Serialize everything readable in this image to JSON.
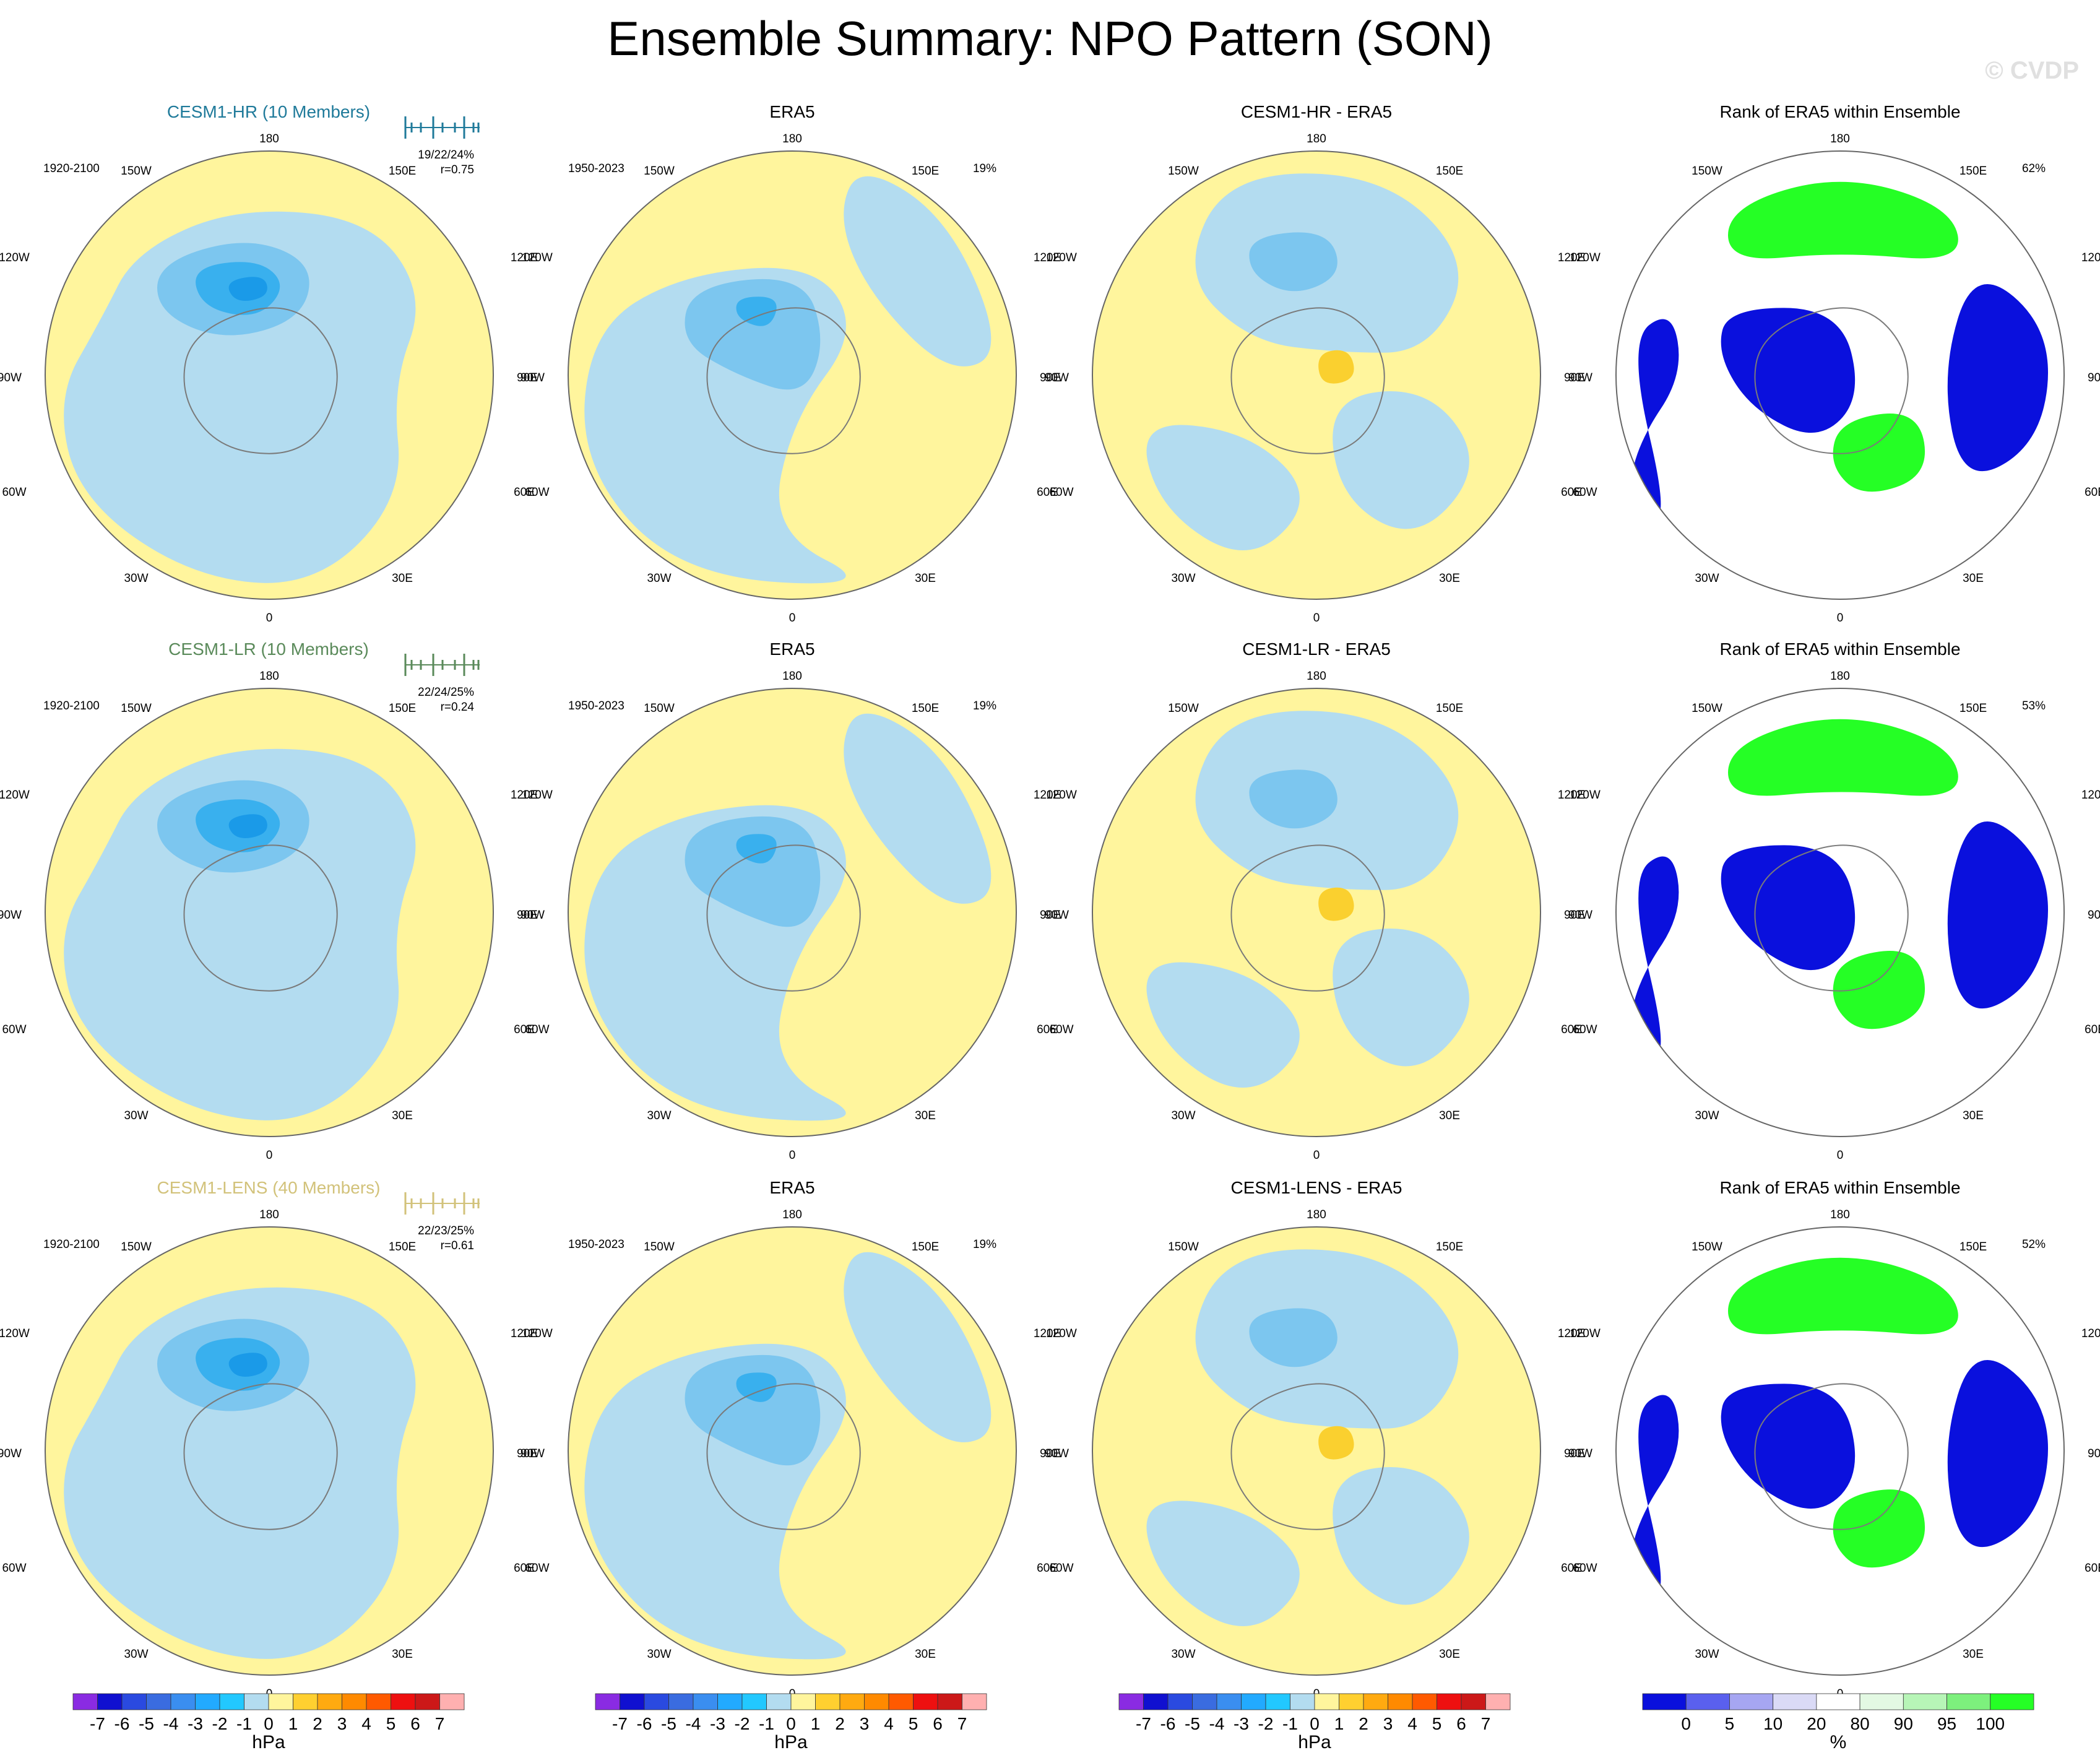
{
  "title": "Ensemble Summary: NPO Pattern (SON)",
  "watermark": "© CVDP",
  "labels": {
    "lon_top": "180",
    "lon_bottom": "0",
    "lon_150w": "150W",
    "lon_150e": "150E",
    "lon_120w": "120W",
    "lon_120e": "120E",
    "lon_90w": "90W",
    "lon_90e": "90E",
    "lon_60w": "60W",
    "lon_60e": "60E",
    "lon_30w": "30W",
    "lon_30e": "30E"
  },
  "rows": [
    {
      "model_title": "CESM1-HR (10 Members)",
      "model_color": "#1f7a9a",
      "model_period": "1920-2100",
      "model_stats": "19/22/24%",
      "model_r": "r=0.75",
      "obs_title": "ERA5",
      "obs_period": "1950-2023",
      "obs_pct": "19%",
      "diff_title": "CESM1-HR - ERA5",
      "rank_title": "Rank of ERA5 within Ensemble",
      "rank_pct": "62%"
    },
    {
      "model_title": "CESM1-LR (10 Members)",
      "model_color": "#5a8a5a",
      "model_period": "1920-2100",
      "model_stats": "22/24/25%",
      "model_r": "r=0.24",
      "obs_title": "ERA5",
      "obs_period": "1950-2023",
      "obs_pct": "19%",
      "diff_title": "CESM1-LR - ERA5",
      "rank_title": "Rank of ERA5 within Ensemble",
      "rank_pct": "53%"
    },
    {
      "model_title": "CESM1-LENS (40 Members)",
      "model_color": "#d2c27a",
      "model_period": "1920-2100",
      "model_stats": "22/23/25%",
      "model_r": "r=0.61",
      "obs_title": "ERA5",
      "obs_period": "1950-2023",
      "obs_pct": "19%",
      "diff_title": "CESM1-LENS - ERA5",
      "rank_title": "Rank of ERA5 within Ensemble",
      "rank_pct": "52%"
    }
  ],
  "colors": {
    "light_blue": "#b3dcf0",
    "light_yellow": "#fff59d",
    "blue2": "#7cc6ef",
    "blue3": "#39b0ee",
    "blue4": "#1a9ae8",
    "orange1": "#fad02f",
    "orange2": "#fba919",
    "rank_blue": "#0a10dd",
    "rank_light_blue": "#dadaf6",
    "rank_light_green": "#e3f9e3",
    "rank_green": "#25ff25"
  },
  "chart_data": {
    "type": "heatmap",
    "pressure_colorbar": {
      "unit": "hPa",
      "tick_labels": [
        "-7",
        "-6",
        "-5",
        "-4",
        "-3",
        "-2",
        "-1",
        "0",
        "1",
        "2",
        "3",
        "4",
        "5",
        "6",
        "7"
      ],
      "colors": [
        "#8a2be2",
        "#1010d0",
        "#2a4ae0",
        "#3a6ce0",
        "#3a8ef0",
        "#22aaff",
        "#22c8ff",
        "#b3dcf0",
        "#fff59d",
        "#ffd030",
        "#ffaa10",
        "#ff8a00",
        "#ff5a00",
        "#ee1010",
        "#cc1818",
        "#ffb0b0"
      ]
    },
    "rank_colorbar": {
      "unit": "%",
      "tick_labels": [
        "0",
        "5",
        "10",
        "20",
        "80",
        "90",
        "95",
        "100"
      ],
      "colors": [
        "#0a10dd",
        "#5a60ee",
        "#a6a6f2",
        "#dadaf6",
        "#ffffff",
        "#e3f9e3",
        "#b7f5b7",
        "#7df07d",
        "#25ff25"
      ]
    }
  }
}
